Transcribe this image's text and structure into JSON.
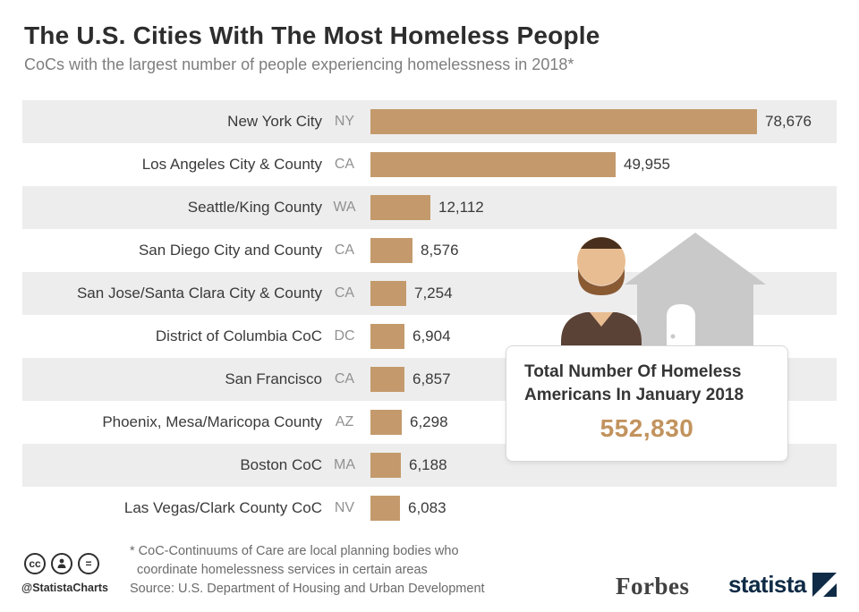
{
  "header": {
    "title": "The U.S. Cities With The Most Homeless People",
    "subtitle": "CoCs with the largest number of people experiencing homelessness in 2018*"
  },
  "chart_data": {
    "type": "bar",
    "orientation": "horizontal",
    "title": "The U.S. Cities With The Most Homeless People",
    "subtitle": "CoCs with the largest number of people experiencing homelessness in 2018*",
    "categories": [
      "New York City",
      "Los Angeles City & County",
      "Seattle/King County",
      "San Diego City and County",
      "San Jose/Santa Clara City & County",
      "District of Columbia CoC",
      "San Francisco",
      "Phoenix, Mesa/Maricopa County",
      "Boston CoC",
      "Las Vegas/Clark County CoC"
    ],
    "states": [
      "NY",
      "CA",
      "WA",
      "CA",
      "CA",
      "DC",
      "CA",
      "AZ",
      "MA",
      "NV"
    ],
    "values": [
      78676,
      49955,
      12112,
      8576,
      7254,
      6904,
      6857,
      6298,
      6188,
      6083
    ],
    "value_labels": [
      "78,676",
      "49,955",
      "12,112",
      "8,576",
      "7,254",
      "6,904",
      "6,857",
      "6,298",
      "6,188",
      "6,083"
    ],
    "xlim": [
      0,
      78676
    ],
    "bar_color": "#c49a6c",
    "row_shade_color": "#ededed",
    "legend": "none",
    "grid": false
  },
  "callout": {
    "title_line1": "Total Number Of Homeless",
    "title_line2": "Americans In January 2018",
    "value": "552,830"
  },
  "footer": {
    "footnote_line1": "* CoC-Continuums of Care are local planning bodies who",
    "footnote_line2": "coordinate homelessness services in certain areas",
    "source": "Source: U.S. Department of Housing and Urban Development",
    "credit": "@StatistaCharts",
    "cc_label": "cc",
    "forbes_logo": "Forbes",
    "statista_logo": "statista",
    "statista_navy": "#0f2b46"
  }
}
